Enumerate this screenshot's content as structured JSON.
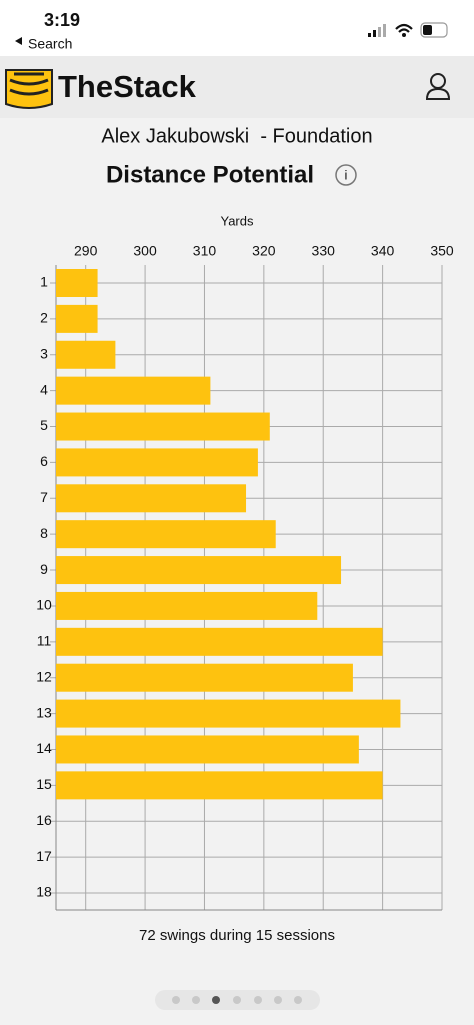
{
  "status_bar": {
    "time": "3:19",
    "back": "Search"
  },
  "header": {
    "app_name": "TheStack"
  },
  "chart_data": {
    "type": "bar",
    "orientation": "horizontal",
    "subtitle": "Alex Jakubowski  - Foundation",
    "title": "Distance Potential",
    "x_label": "Yards",
    "categories": [
      "1",
      "2",
      "3",
      "4",
      "5",
      "6",
      "7",
      "8",
      "9",
      "10",
      "11",
      "12",
      "13",
      "14",
      "15",
      "16",
      "17",
      "18"
    ],
    "values": [
      292,
      292,
      295,
      311,
      321,
      319,
      317,
      322,
      333,
      329,
      340,
      335,
      343,
      336,
      340,
      null,
      null,
      null
    ],
    "color": "#fec20f",
    "xlim": [
      285,
      350
    ],
    "xticks": [
      290,
      300,
      310,
      320,
      330,
      340,
      350
    ],
    "grid": true
  },
  "footer": {
    "note": "72 swings during 15 sessions"
  }
}
